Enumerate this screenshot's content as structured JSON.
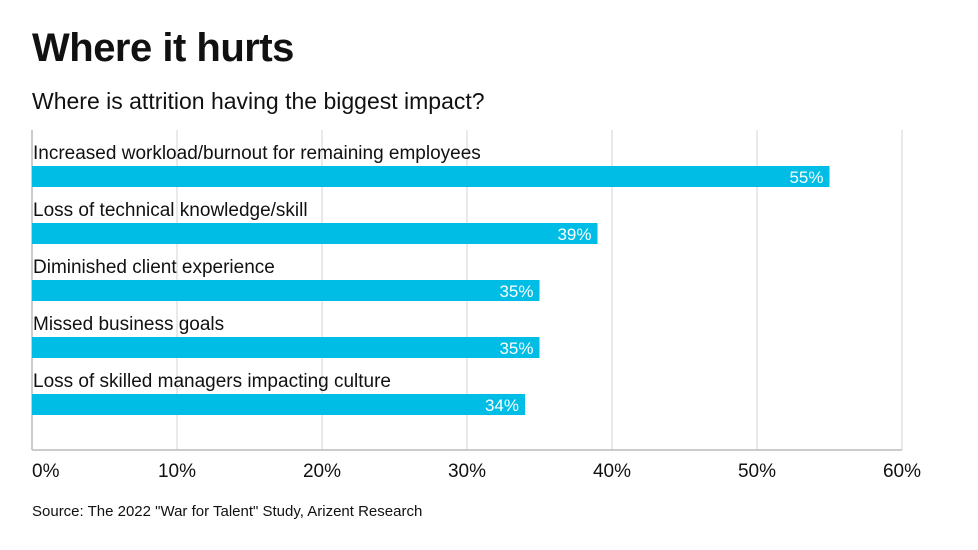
{
  "title": "Where it hurts",
  "subtitle": "Where is attrition having the biggest impact?",
  "source": "Source: The 2022 \"War for Talent\" Study, Arizent Research",
  "colors": {
    "bar": "#00BDE5",
    "grid": "#E2E2E2",
    "axis": "#BBBBBB"
  },
  "chart_data": {
    "type": "bar",
    "orientation": "horizontal",
    "title": "Where it hurts",
    "subtitle": "Where is attrition having the biggest impact?",
    "categories": [
      "Increased workload/burnout for remaining employees",
      "Loss of technical knowledge/skill",
      "Diminished client experience",
      "Missed business goals",
      "Loss of skilled managers impacting culture"
    ],
    "values": [
      55,
      39,
      35,
      35,
      34
    ],
    "value_labels": [
      "55%",
      "39%",
      "35%",
      "35%",
      "34%"
    ],
    "xlim": [
      0,
      60
    ],
    "xticks": [
      0,
      10,
      20,
      30,
      40,
      50,
      60
    ],
    "xtick_labels": [
      "0%",
      "10%",
      "20%",
      "30%",
      "40%",
      "50%",
      "60%"
    ],
    "grid": true,
    "legend": "none"
  }
}
